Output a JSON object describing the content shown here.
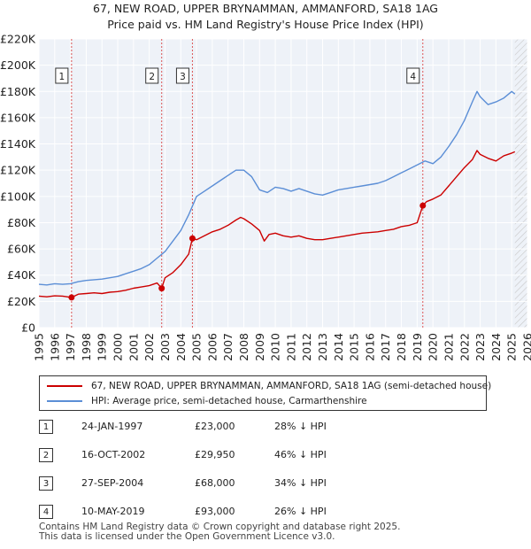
{
  "chart_data": {
    "type": "line",
    "title": "67, NEW ROAD, UPPER BRYNAMMAN, AMMANFORD, SA18 1AG",
    "subtitle": "Price paid vs. HM Land Registry's House Price Index (HPI)",
    "xlim": [
      1995,
      2026
    ],
    "ylim": [
      0,
      220000
    ],
    "x_ticks": [
      1995,
      1996,
      1997,
      1998,
      1999,
      2000,
      2001,
      2002,
      2003,
      2004,
      2005,
      2006,
      2007,
      2008,
      2009,
      2010,
      2011,
      2012,
      2013,
      2014,
      2015,
      2016,
      2017,
      2018,
      2019,
      2020,
      2021,
      2022,
      2023,
      2024,
      2025,
      2026
    ],
    "y_ticks": [
      {
        "value": 0,
        "label": "£0"
      },
      {
        "value": 20000,
        "label": "£20K"
      },
      {
        "value": 40000,
        "label": "£40K"
      },
      {
        "value": 60000,
        "label": "£60K"
      },
      {
        "value": 80000,
        "label": "£80K"
      },
      {
        "value": 100000,
        "label": "£100K"
      },
      {
        "value": 120000,
        "label": "£120K"
      },
      {
        "value": 140000,
        "label": "£140K"
      },
      {
        "value": 160000,
        "label": "£160K"
      },
      {
        "value": 180000,
        "label": "£180K"
      },
      {
        "value": 200000,
        "label": "£200K"
      },
      {
        "value": 220000,
        "label": "£220K"
      }
    ],
    "grid": true,
    "future_hatch_from": 2025.2,
    "series": [
      {
        "name": "67, NEW ROAD, UPPER BRYNAMMAN, AMMANFORD, SA18 1AG (semi-detached house)",
        "color": "#cc0000",
        "x": [
          1995.0,
          1995.5,
          1996.0,
          1996.5,
          1997.07,
          1997.5,
          1998.0,
          1998.5,
          1999.0,
          1999.5,
          2000.0,
          2000.5,
          2001.0,
          2001.5,
          2002.0,
          2002.5,
          2002.79,
          2003.0,
          2003.5,
          2004.0,
          2004.5,
          2004.74,
          2005.0,
          2005.5,
          2006.0,
          2006.5,
          2007.0,
          2007.5,
          2007.8,
          2008.0,
          2008.5,
          2009.0,
          2009.3,
          2009.6,
          2010.0,
          2010.5,
          2011.0,
          2011.5,
          2012.0,
          2012.5,
          2013.0,
          2013.5,
          2014.0,
          2014.5,
          2015.0,
          2015.5,
          2016.0,
          2016.5,
          2017.0,
          2017.5,
          2018.0,
          2018.5,
          2019.0,
          2019.36,
          2019.6,
          2020.0,
          2020.5,
          2021.0,
          2021.5,
          2022.0,
          2022.5,
          2022.8,
          2023.0,
          2023.5,
          2024.0,
          2024.5,
          2025.0,
          2025.2
        ],
        "y": [
          24000,
          23500,
          24200,
          24000,
          23000,
          25500,
          26000,
          26500,
          26000,
          27000,
          27500,
          28500,
          30000,
          31000,
          32000,
          34000,
          29950,
          38000,
          42000,
          48000,
          56000,
          68000,
          67000,
          70000,
          73000,
          75000,
          78000,
          82000,
          84000,
          83000,
          79000,
          74000,
          66000,
          71000,
          72000,
          70000,
          69000,
          70000,
          68000,
          67000,
          67000,
          68000,
          69000,
          70000,
          71000,
          72000,
          72500,
          73000,
          74000,
          75000,
          77000,
          78000,
          80000,
          93000,
          96000,
          98000,
          101000,
          108000,
          115000,
          122000,
          128000,
          135000,
          132000,
          129000,
          127000,
          131000,
          133000,
          134000
        ]
      },
      {
        "name": "HPI: Average price, semi-detached house, Carmarthenshire",
        "color": "#5b8ed6",
        "x": [
          1995.0,
          1995.5,
          1996.0,
          1996.5,
          1997.0,
          1997.5,
          1998.0,
          1998.5,
          1999.0,
          1999.5,
          2000.0,
          2000.5,
          2001.0,
          2001.5,
          2002.0,
          2002.5,
          2003.0,
          2003.5,
          2004.0,
          2004.5,
          2005.0,
          2005.5,
          2006.0,
          2006.5,
          2007.0,
          2007.5,
          2008.0,
          2008.5,
          2009.0,
          2009.5,
          2010.0,
          2010.5,
          2011.0,
          2011.5,
          2012.0,
          2012.5,
          2013.0,
          2013.5,
          2014.0,
          2014.5,
          2015.0,
          2015.5,
          2016.0,
          2016.5,
          2017.0,
          2017.5,
          2018.0,
          2018.5,
          2019.0,
          2019.5,
          2020.0,
          2020.5,
          2021.0,
          2021.5,
          2022.0,
          2022.5,
          2022.8,
          2023.0,
          2023.5,
          2024.0,
          2024.5,
          2025.0,
          2025.2
        ],
        "y": [
          33000,
          32500,
          33500,
          33000,
          33500,
          35000,
          36000,
          36500,
          37000,
          38000,
          39000,
          41000,
          43000,
          45000,
          48000,
          53000,
          58000,
          66000,
          74000,
          86000,
          100000,
          104000,
          108000,
          112000,
          116000,
          120000,
          120000,
          115000,
          105000,
          103000,
          107000,
          106000,
          104000,
          106000,
          104000,
          102000,
          101000,
          103000,
          105000,
          106000,
          107000,
          108000,
          109000,
          110000,
          112000,
          115000,
          118000,
          121000,
          124000,
          127000,
          125000,
          130000,
          138000,
          147000,
          158000,
          172000,
          180000,
          176000,
          170000,
          172000,
          175000,
          180000,
          178000
        ]
      }
    ],
    "sales": [
      {
        "label": "1",
        "x": 1997.07,
        "y": 23000
      },
      {
        "label": "2",
        "x": 2002.79,
        "y": 29950
      },
      {
        "label": "3",
        "x": 2004.74,
        "y": 68000
      },
      {
        "label": "4",
        "x": 2019.36,
        "y": 93000
      }
    ]
  },
  "legend": {
    "property_label": "67, NEW ROAD, UPPER BRYNAMMAN, AMMANFORD, SA18 1AG (semi-detached house)",
    "hpi_label": "HPI: Average price, semi-detached house, Carmarthenshire",
    "property_color": "#cc0000",
    "hpi_color": "#5b8ed6"
  },
  "sales_table": [
    {
      "num": "1",
      "date": "24-JAN-1997",
      "price": "£23,000",
      "hpi": "28% ↓ HPI"
    },
    {
      "num": "2",
      "date": "16-OCT-2002",
      "price": "£29,950",
      "hpi": "46% ↓ HPI"
    },
    {
      "num": "3",
      "date": "27-SEP-2004",
      "price": "£68,000",
      "hpi": "34% ↓ HPI"
    },
    {
      "num": "4",
      "date": "10-MAY-2019",
      "price": "£93,000",
      "hpi": "26% ↓ HPI"
    }
  ],
  "footer": {
    "line1": "Contains HM Land Registry data © Crown copyright and database right 2025.",
    "line2": "This data is licensed under the Open Government Licence v3.0."
  }
}
